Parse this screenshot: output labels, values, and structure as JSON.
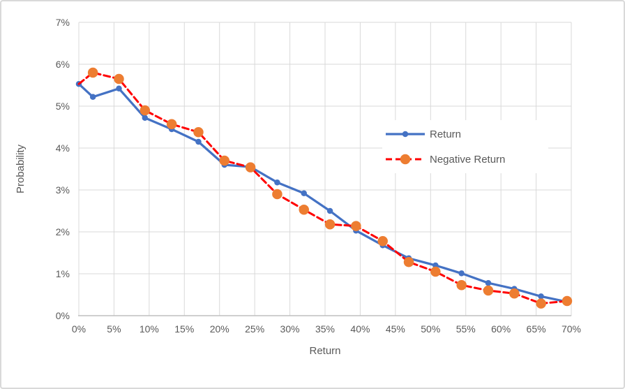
{
  "chart": {
    "y_ticks": [
      "0%",
      "1%",
      "2%",
      "3%",
      "4%",
      "5%",
      "6%",
      "7%"
    ],
    "x_ticks": [
      "0%",
      "5%",
      "10%",
      "15%",
      "20%",
      "25%",
      "30%",
      "35%",
      "40%",
      "45%",
      "50%",
      "55%",
      "60%",
      "65%",
      "70%"
    ]
  },
  "colors": {
    "return_line": "#4472C4",
    "negative_return_line": "#FF0000",
    "negative_return_marker": "#ED7D31",
    "grid": "#D9D9D9",
    "axis": "#BFBFBF",
    "text": "#595959",
    "background": "#FFFFFF",
    "border": "#D9D9D9"
  },
  "chart_data": {
    "type": "line",
    "title": "",
    "xlabel": "Return",
    "ylabel": "Probability",
    "xlim": [
      0,
      70
    ],
    "ylim": [
      0,
      7
    ],
    "x_tick_step": 5,
    "y_tick_step": 1,
    "grid": true,
    "legend_position": "center-right",
    "units": "percent",
    "x": [
      0,
      2,
      5.7,
      9.4,
      13.2,
      17,
      20.7,
      24.4,
      28.2,
      32,
      35.7,
      39.4,
      43.2,
      46.9,
      50.7,
      54.4,
      58.2,
      61.9,
      65.7,
      69.4
    ],
    "series": [
      {
        "name": "Return",
        "color": "#4472C4",
        "style": "solid",
        "marker": "small-circle",
        "values": [
          5.53,
          5.22,
          5.42,
          4.72,
          4.45,
          4.15,
          3.6,
          3.55,
          3.18,
          2.92,
          2.5,
          2.03,
          1.68,
          1.37,
          1.2,
          1.01,
          0.78,
          0.64,
          0.46,
          0.33
        ]
      },
      {
        "name": "Negative Return",
        "color": "#FF0000",
        "marker_color": "#ED7D31",
        "style": "dashed",
        "marker": "large-circle",
        "skip_first_marker": true,
        "values": [
          5.53,
          5.8,
          5.65,
          4.9,
          4.57,
          4.38,
          3.7,
          3.54,
          2.9,
          2.53,
          2.18,
          2.14,
          1.78,
          1.28,
          1.05,
          0.73,
          0.6,
          0.53,
          0.29,
          0.35
        ]
      }
    ]
  }
}
